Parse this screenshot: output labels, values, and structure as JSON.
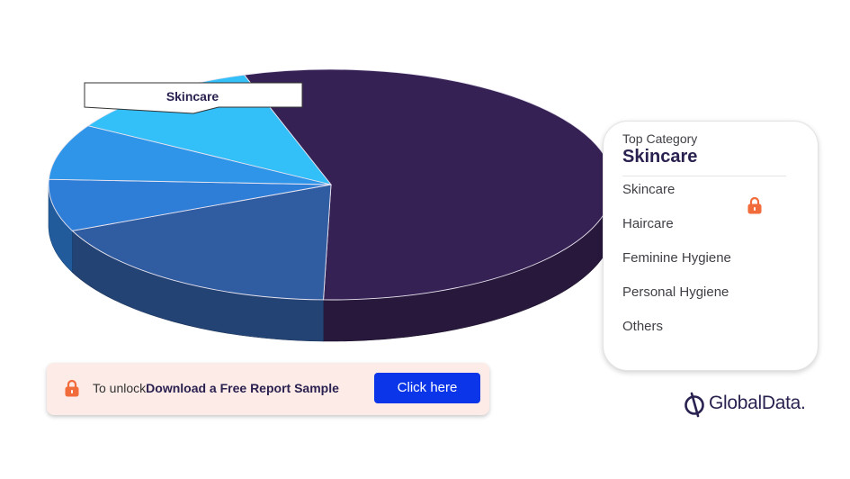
{
  "chart_data": {
    "type": "pie",
    "title": "",
    "categories": [
      "Skincare",
      "Haircare",
      "Feminine Hygiene",
      "Personal Hygiene",
      "Others"
    ],
    "values": [
      55.4,
      18.0,
      7.3,
      7.8,
      11.5
    ],
    "callout_label": "Skincare",
    "colors": [
      "#362154",
      "#305da1",
      "#2e7ed8",
      "#2e95e8",
      "#33bff8"
    ]
  },
  "legend": {
    "subtitle": "Top Category",
    "title": "Skincare",
    "items": [
      "Skincare",
      "Haircare",
      "Feminine Hygiene",
      "Personal Hygiene",
      "Others"
    ]
  },
  "unlock": {
    "prefix": "To unlock",
    "strong": "Download a Free Report Sample",
    "button": "Click here"
  },
  "brand": {
    "name": "GlobalData."
  },
  "icons": {
    "lock": "lock-icon",
    "brand_logo": "globaldata-logo-icon"
  },
  "accent_colors": {
    "lock": "#f26b3a",
    "button": "#0b35e8",
    "unlock_bg": "#fcebe7"
  }
}
